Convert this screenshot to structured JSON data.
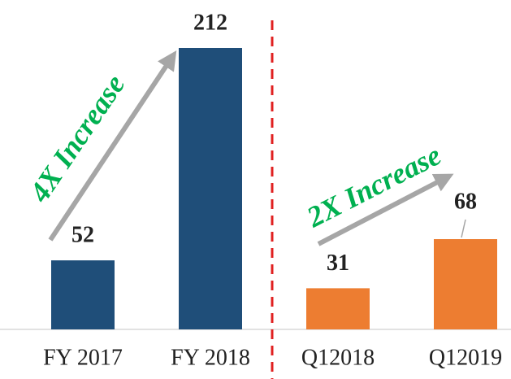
{
  "chart_data": {
    "type": "bar",
    "categories": [
      "FY 2017",
      "FY 2018",
      "Q12018",
      "Q12019"
    ],
    "values": [
      52,
      212,
      31,
      68
    ],
    "colors": [
      "#1f4e79",
      "#1f4e79",
      "#ed7d31",
      "#ed7d31"
    ],
    "annotations": [
      "4X Increase",
      "2X Increase"
    ]
  }
}
